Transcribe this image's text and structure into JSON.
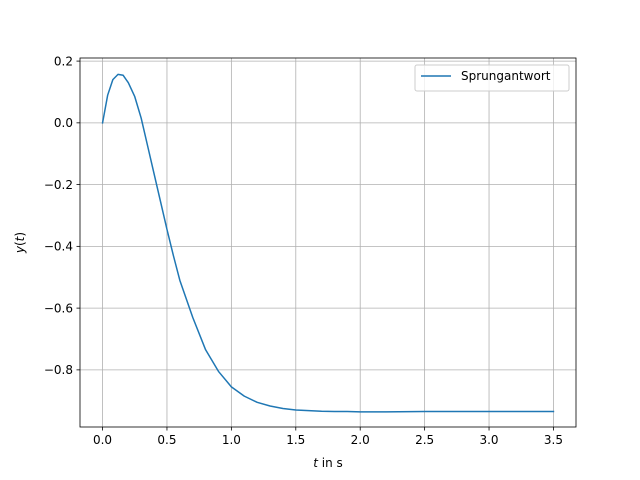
{
  "chart_data": {
    "type": "line",
    "title": "",
    "xlabel_var": "t",
    "xlabel_rest": " in s",
    "ylabel_fn": "y",
    "ylabel_arg": "t",
    "xlim": [
      -0.175,
      3.675
    ],
    "ylim": [
      -0.985,
      0.21
    ],
    "xticks": [
      0.0,
      0.5,
      1.0,
      1.5,
      2.0,
      2.5,
      3.0,
      3.5
    ],
    "xtick_labels": [
      "0.0",
      "0.5",
      "1.0",
      "1.5",
      "2.0",
      "2.5",
      "3.0",
      "3.5"
    ],
    "yticks": [
      0.2,
      0.0,
      -0.2,
      -0.4,
      -0.6,
      -0.8
    ],
    "ytick_labels": [
      "0.2",
      "0.0",
      "−0.2",
      "−0.4",
      "−0.6",
      "−0.8"
    ],
    "grid": true,
    "legend_position": "top-right",
    "series": [
      {
        "name": "Sprungantwort",
        "color": "#1f77b4",
        "x": [
          0.0,
          0.04,
          0.08,
          0.12,
          0.16,
          0.2,
          0.25,
          0.3,
          0.35,
          0.4,
          0.45,
          0.5,
          0.55,
          0.6,
          0.7,
          0.8,
          0.9,
          1.0,
          1.1,
          1.2,
          1.3,
          1.4,
          1.5,
          1.6,
          1.7,
          1.8,
          1.9,
          2.0,
          2.2,
          2.5,
          3.0,
          3.5
        ],
        "y": [
          0.0,
          0.09,
          0.14,
          0.157,
          0.154,
          0.13,
          0.085,
          0.015,
          -0.075,
          -0.165,
          -0.255,
          -0.345,
          -0.43,
          -0.51,
          -0.63,
          -0.735,
          -0.805,
          -0.855,
          -0.885,
          -0.905,
          -0.917,
          -0.925,
          -0.93,
          -0.932,
          -0.934,
          -0.935,
          -0.935,
          -0.936,
          -0.936,
          -0.935,
          -0.935,
          -0.935
        ]
      }
    ]
  }
}
